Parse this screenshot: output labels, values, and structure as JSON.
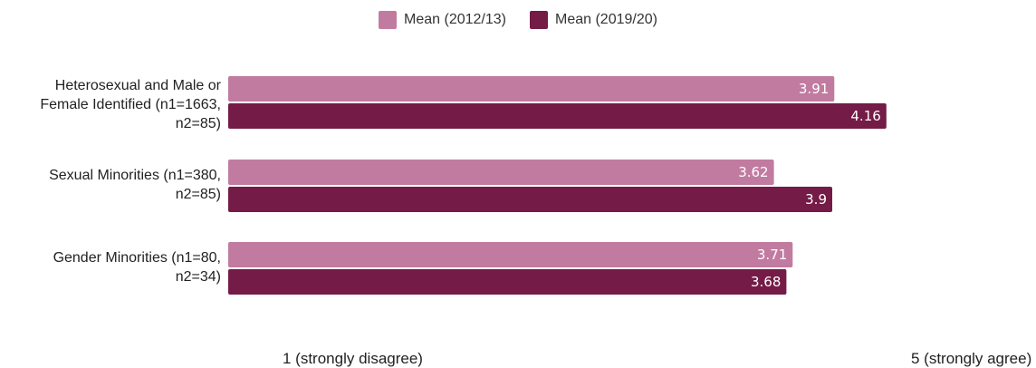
{
  "chart_data": {
    "type": "bar",
    "orientation": "horizontal",
    "categories": [
      "Heterosexual and Male or Female Identified (n1=1663, n2=85)",
      "Sexual Minorities (n1=380, n2=85)",
      "Gender Minorities (n1=80, n2=34)"
    ],
    "category_lines": [
      [
        "Heterosexual and Male or",
        "Female Identified (n1=1663,",
        "n2=85)"
      ],
      [
        "Sexual Minorities (n1=380,",
        "n2=85)"
      ],
      [
        "Gender Minorities (n1=80,",
        "n2=34)"
      ]
    ],
    "series": [
      {
        "name": "Mean (2012/13)",
        "color": "#c27ba0",
        "values": [
          3.91,
          3.62,
          3.71
        ],
        "labels": [
          "3.91",
          "3.62",
          "3.71"
        ]
      },
      {
        "name": "Mean (2019/20)",
        "color": "#741b47",
        "values": [
          4.16,
          3.9,
          3.68
        ],
        "labels": [
          "4.16",
          "3.9",
          "3.68"
        ]
      }
    ],
    "xlim": [
      1,
      5
    ],
    "x_tick_labels": {
      "min": "1 (strongly disagree)",
      "max": "5 (strongly agree)"
    },
    "legend_position": "top-center",
    "grid": false
  }
}
